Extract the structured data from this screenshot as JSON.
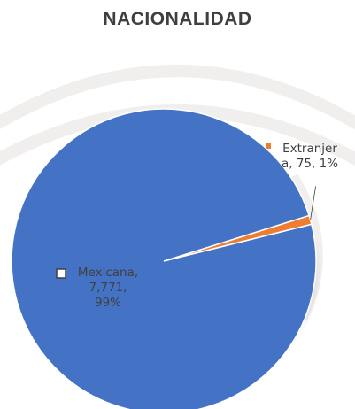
{
  "chart_data": {
    "type": "pie",
    "title": "NACIONALIDAD",
    "slices": [
      {
        "name": "Mexicana",
        "value": 7771,
        "percent": 99,
        "color": "#4472C4",
        "label_lines": [
          "Mexicana,",
          "7,771,",
          "99%"
        ]
      },
      {
        "name": "Extranjera",
        "value": 75,
        "percent": 1,
        "color": "#ED7D31",
        "label_lines": [
          "Extranjer",
          "a, 75, 1%"
        ]
      }
    ]
  }
}
